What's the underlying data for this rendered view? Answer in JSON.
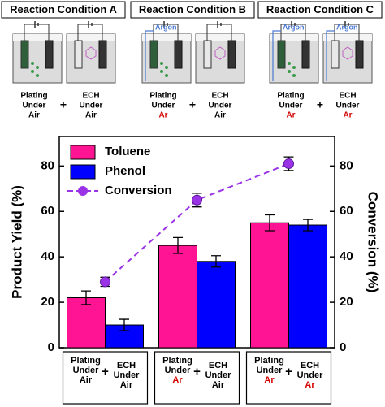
{
  "conditions": [
    {
      "title": "Reaction Condition A",
      "plating": [
        "Plating",
        "Under",
        "Air"
      ],
      "plus": "+",
      "ech": [
        "ECH",
        "Under",
        "Air"
      ],
      "argon": [
        null,
        null
      ]
    },
    {
      "title": "Reaction Condition B",
      "plating": [
        "Plating",
        "Under",
        "Ar"
      ],
      "plus": "+",
      "ech": [
        "ECH",
        "Under",
        "Air"
      ],
      "argon": [
        "Argon",
        null
      ]
    },
    {
      "title": "Reaction Condition C",
      "plating": [
        "Plating",
        "Under",
        "Ar"
      ],
      "plus": "+",
      "ech": [
        "ECH",
        "Under",
        "Ar"
      ],
      "argon": [
        "Argon",
        "Argon"
      ]
    }
  ],
  "gas_colors": {
    "Air": "#000000",
    "Ar": "#d40000"
  },
  "chart_data": {
    "type": "bar",
    "ylabel": "Product Yield (%)",
    "y2label": "Conversion (%)",
    "categories": [
      {
        "plating": [
          "Plating",
          "Under",
          "Air"
        ],
        "plus": "+",
        "ech": [
          "ECH",
          "Under",
          "Air"
        ]
      },
      {
        "plating": [
          "Plating",
          "Under",
          "Ar"
        ],
        "plus": "+",
        "ech": [
          "ECH",
          "Under",
          "Air"
        ]
      },
      {
        "plating": [
          "Plating",
          "Under",
          "Ar"
        ],
        "plus": "+",
        "ech": [
          "ECH",
          "Under",
          "Ar"
        ]
      }
    ],
    "series": [
      {
        "name": "Toluene",
        "type": "bar",
        "color": "#ff1493",
        "values": [
          22,
          45,
          55
        ],
        "errors": [
          3,
          3.5,
          3.5
        ]
      },
      {
        "name": "Phenol",
        "type": "bar",
        "color": "#0000ff",
        "values": [
          10,
          38,
          54
        ],
        "errors": [
          2.5,
          2.5,
          2.5
        ]
      },
      {
        "name": "Conversion",
        "type": "line",
        "axis": "y2",
        "color": "#9a32e6",
        "values": [
          29,
          65,
          81
        ],
        "errors": [
          2,
          3,
          3
        ]
      }
    ],
    "ylim": [
      0,
      93
    ],
    "yticks": [
      0,
      20,
      40,
      60,
      80
    ],
    "y2lim": [
      0,
      93
    ],
    "y2ticks": [
      0,
      20,
      40,
      60,
      80
    ],
    "legend": "upper-left"
  }
}
